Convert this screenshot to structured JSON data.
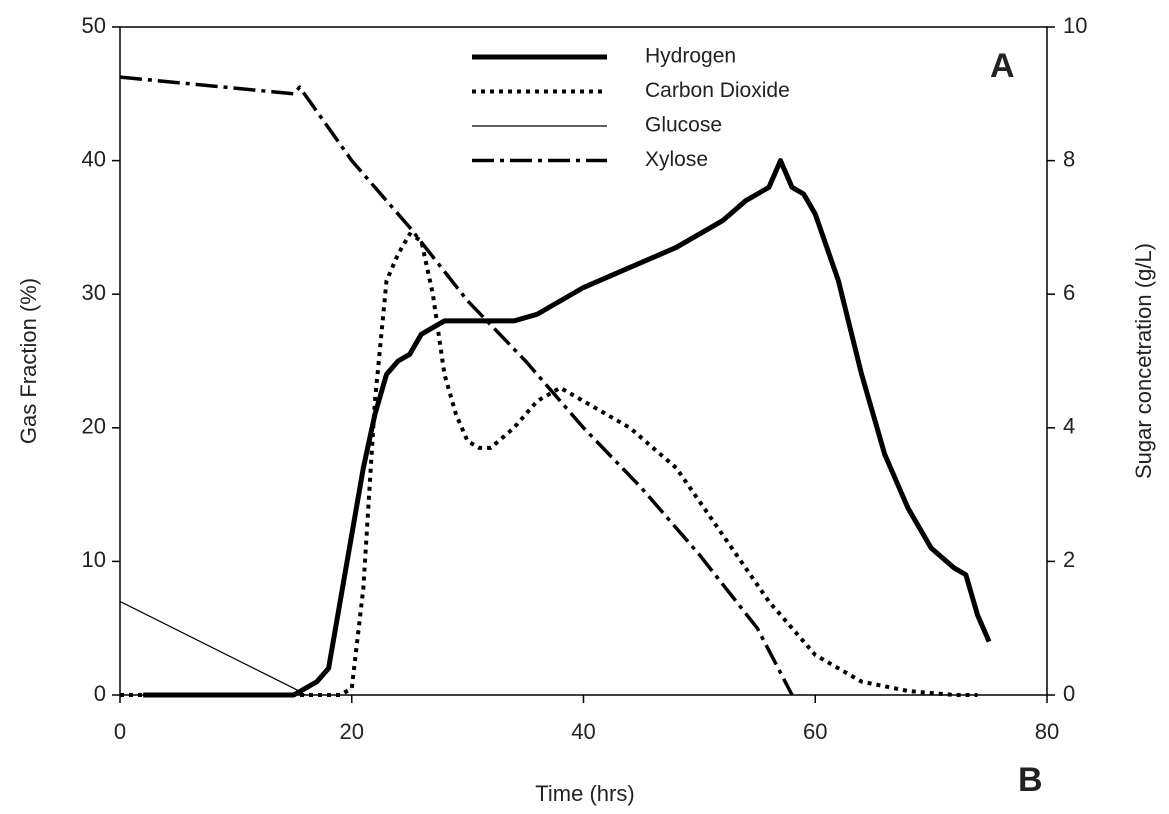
{
  "chart_data": {
    "type": "line",
    "xlabel": "Time (hrs)",
    "ylabel": "Gas Fraction (%)",
    "y2label": "Sugar concetration (g/L)",
    "annotations": [
      "A",
      "B"
    ],
    "xlim": [
      0,
      80
    ],
    "xticks": [
      0,
      20,
      40,
      60,
      80
    ],
    "ylim": [
      0,
      50
    ],
    "yticks": [
      0,
      10,
      20,
      30,
      40,
      50
    ],
    "y2lim": [
      0,
      10
    ],
    "y2ticks": [
      0,
      2,
      4,
      6,
      8,
      10
    ],
    "legend": "upper center",
    "grid": false,
    "series": [
      {
        "name": "Hydrogen",
        "color": "#000000",
        "dash": "solid",
        "width": 5,
        "axis": "y",
        "x": [
          2,
          15,
          16,
          17,
          18,
          19,
          20,
          21,
          22,
          23,
          24,
          25,
          26,
          27,
          28,
          30,
          32,
          34,
          36,
          38,
          40,
          44,
          48,
          50,
          52,
          54,
          56,
          57,
          58,
          59,
          60,
          62,
          64,
          66,
          68,
          70,
          72,
          73,
          74,
          75
        ],
        "values": [
          0,
          0,
          0.5,
          1,
          2,
          7,
          12,
          17,
          21,
          24,
          25,
          25.5,
          27,
          27.5,
          28,
          28,
          28,
          28,
          28.5,
          29.5,
          30.5,
          32,
          33.5,
          34.5,
          35.5,
          37,
          38,
          40,
          38,
          37.5,
          36,
          31,
          24,
          18,
          14,
          11,
          9.5,
          9,
          6,
          4
        ]
      },
      {
        "name": "Carbon Dioxide",
        "color": "#000000",
        "dash": "dotted",
        "width": 4,
        "axis": "y",
        "x": [
          0,
          19,
          20,
          21,
          22,
          23,
          24,
          25,
          26,
          27,
          28,
          29,
          30,
          31,
          32,
          34,
          36,
          38,
          40,
          44,
          48,
          52,
          56,
          58,
          60,
          64,
          68,
          72,
          74
        ],
        "values": [
          0,
          0,
          0.5,
          8,
          22,
          31,
          33,
          34.5,
          34,
          30,
          24,
          21,
          19,
          18.5,
          18.5,
          20,
          22,
          23,
          22,
          20,
          17,
          12,
          7,
          5,
          3,
          1,
          0.3,
          0,
          0
        ]
      },
      {
        "name": "Glucose",
        "color": "#000000",
        "dash": "solid",
        "width": 1.2,
        "axis": "y2",
        "x": [
          0,
          15,
          16
        ],
        "values": [
          1.4,
          0.1,
          0
        ]
      },
      {
        "name": "Xylose",
        "color": "#000000",
        "dash": "dash-dot",
        "width": 3.5,
        "axis": "y2",
        "x": [
          0,
          15,
          15.5,
          20,
          25,
          30,
          35,
          40,
          45,
          50,
          55,
          58
        ],
        "values": [
          9.25,
          9,
          9.1,
          8,
          7,
          5.9,
          5,
          4,
          3.1,
          2.1,
          1,
          0
        ]
      }
    ]
  }
}
